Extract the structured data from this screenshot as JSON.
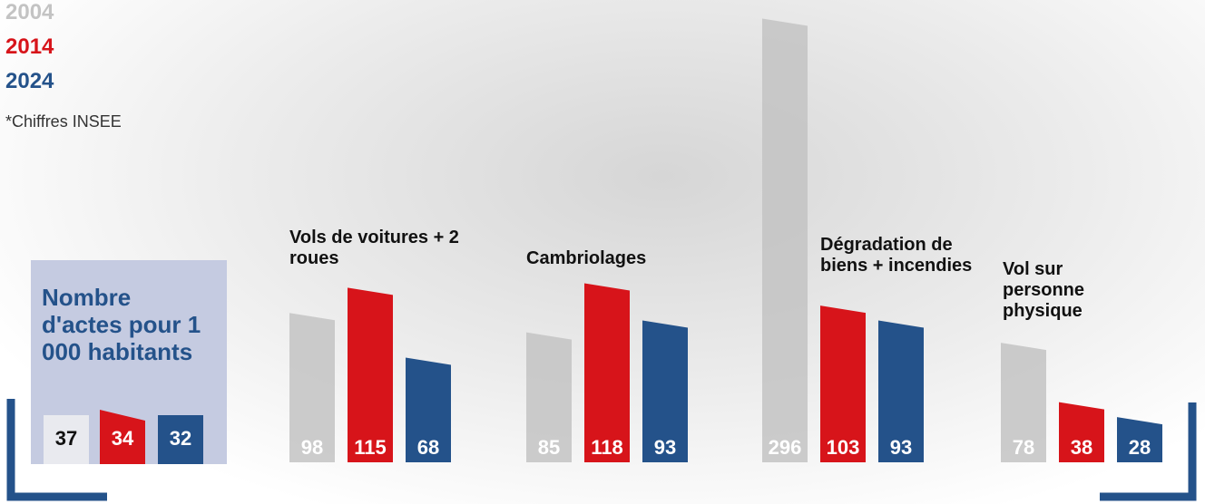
{
  "chart_data": {
    "type": "bar",
    "note": "*Chiffres INSEE",
    "summary": {
      "label": "Nombre d'actes pour 1 000 habitants",
      "values": [
        37,
        34,
        32
      ]
    },
    "categories": [
      "Vols de voitures + 2 roues",
      "Cambriolages",
      "Dégradation de biens + incendies",
      "Vol sur personne physique"
    ],
    "series": [
      {
        "name": "2004",
        "color": "#c3c3c3",
        "values": [
          98,
          85,
          296,
          78
        ]
      },
      {
        "name": "2014",
        "color": "#d7141a",
        "values": [
          115,
          118,
          103,
          38
        ]
      },
      {
        "name": "2024",
        "color": "#24528a",
        "values": [
          68,
          93,
          93,
          28
        ]
      }
    ]
  }
}
